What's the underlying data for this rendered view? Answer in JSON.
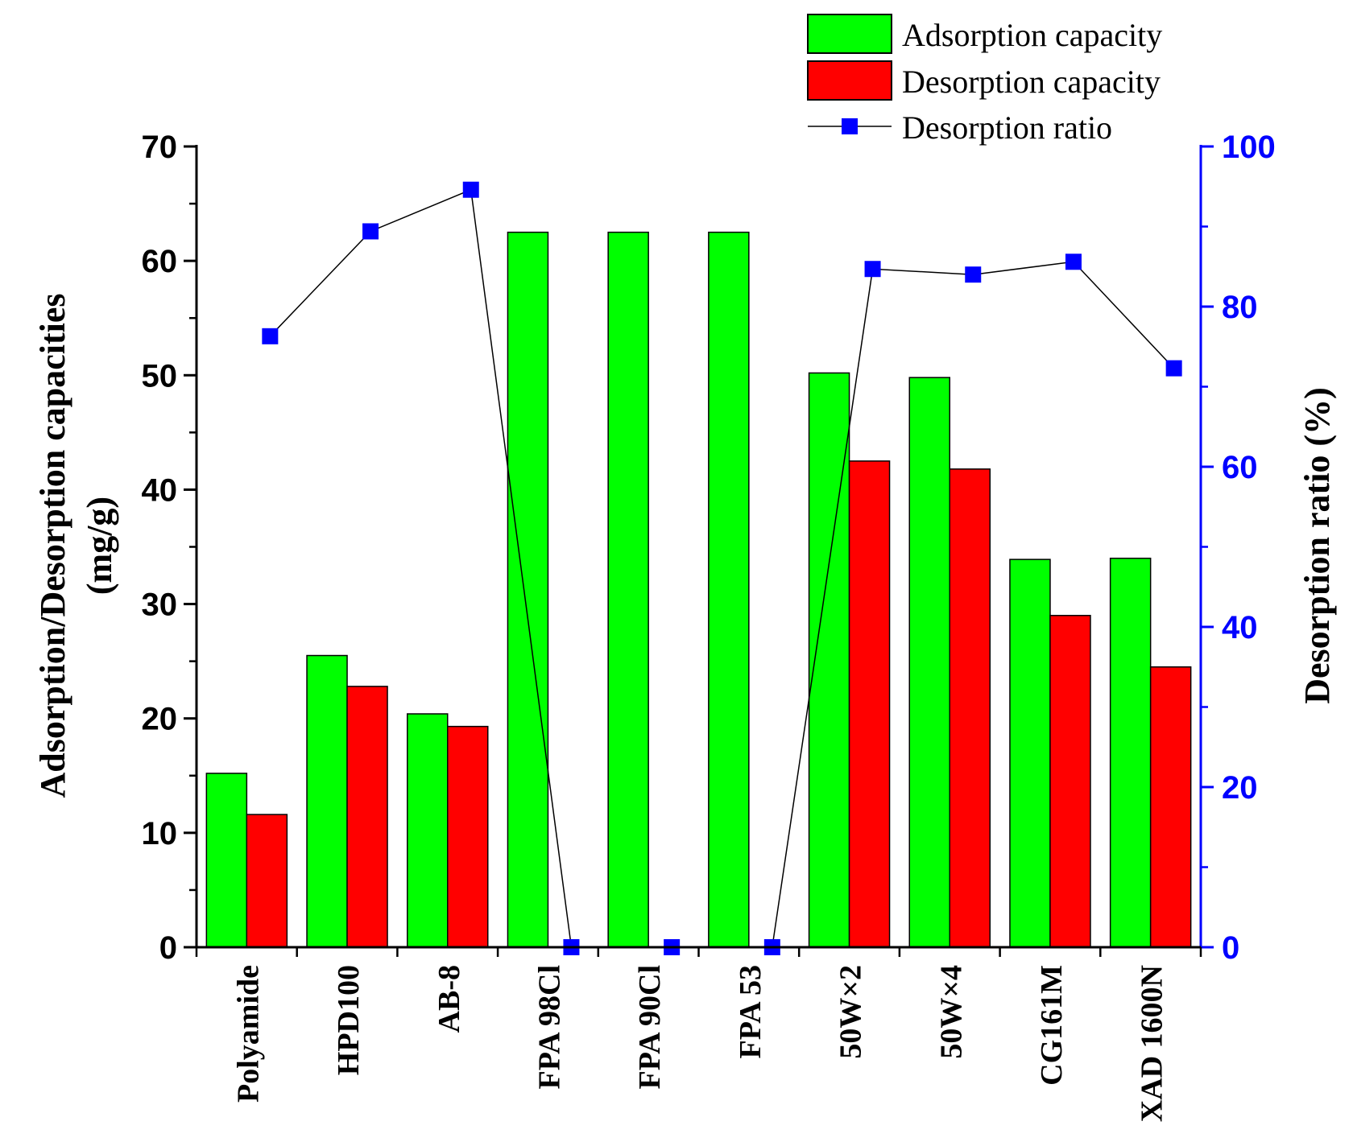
{
  "chart_data": {
    "type": "bar",
    "categories": [
      "Polyamide",
      "HPD100",
      "AB-8",
      "FPA 98Cl",
      "FPA 90Cl",
      "FPA 53",
      "50W×2",
      "50W×4",
      "CG161M",
      "XAD 1600N"
    ],
    "series": [
      {
        "name": "Adsorption capacity",
        "kind": "bar",
        "axis": "left",
        "color": "#00ff00",
        "values": [
          15.2,
          25.5,
          20.4,
          62.5,
          62.5,
          62.5,
          50.2,
          49.8,
          33.9,
          34.0
        ]
      },
      {
        "name": "Desorption capacity",
        "kind": "bar",
        "axis": "left",
        "color": "#ff0000",
        "values": [
          11.6,
          22.8,
          19.3,
          0,
          0,
          0,
          42.5,
          41.8,
          29.0,
          24.5
        ]
      },
      {
        "name": "Desorption ratio",
        "kind": "line",
        "axis": "right",
        "color": "#0000ff",
        "values": [
          76.3,
          89.4,
          94.6,
          0,
          0,
          0,
          84.7,
          84.0,
          85.6,
          72.3
        ]
      }
    ],
    "ylabel_left": [
      "Adsorption/Desorption capacities",
      "(mg/g)"
    ],
    "ylabel_right": "Desorption ratio (%)",
    "ylim_left": [
      0,
      70
    ],
    "ylim_right": [
      0,
      100
    ],
    "yticks_left": [
      "0",
      "10",
      "20",
      "30",
      "40",
      "50",
      "60",
      "70"
    ],
    "yticks_right": [
      "0",
      "20",
      "40",
      "60",
      "80",
      "100"
    ],
    "left_axis_color": "#000000",
    "right_axis_color": "#0000ff",
    "legend_position": "top-right"
  }
}
